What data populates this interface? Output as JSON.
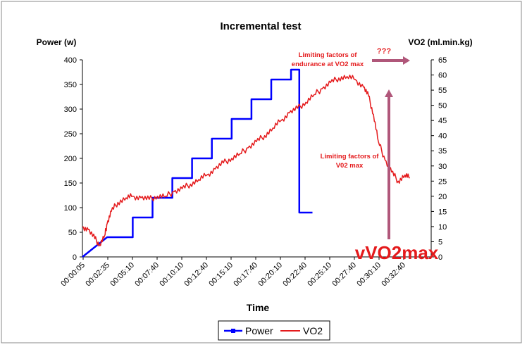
{
  "chart_data": {
    "type": "line",
    "title": "Incremental test",
    "xlabel": "Time",
    "ylabel_left": "Power (w)",
    "ylabel_right": "VO2 (ml.min.kg)",
    "x_ticks": [
      "00:00:05",
      "00:02:35",
      "00:05:10",
      "00:07:40",
      "00:10:10",
      "00:12:40",
      "00:15:10",
      "00:17:40",
      "00:20:10",
      "00:22:40",
      "00:25:10",
      "00:27:40",
      "00:30:10",
      "00:32:40"
    ],
    "y_left_ticks": [
      "0",
      "50",
      "100",
      "150",
      "200",
      "250",
      "300",
      "350",
      "400"
    ],
    "y_right_ticks": [
      "0",
      "5",
      "10",
      "15",
      "20",
      "25",
      "30",
      "35",
      "40",
      "45",
      "50",
      "55",
      "60",
      "65"
    ],
    "ylim_left": [
      0,
      400
    ],
    "ylim_right": [
      0,
      65
    ],
    "xlim_seconds": [
      5,
      2120
    ],
    "series": [
      {
        "name": "Power",
        "axis": "left",
        "color": "#0000ff",
        "step": true,
        "points": [
          [
            "00:00:05",
            0
          ],
          [
            "00:02:35",
            40
          ],
          [
            "00:05:10",
            40
          ],
          [
            "00:05:10",
            80
          ],
          [
            "00:07:10",
            80
          ],
          [
            "00:07:10",
            120
          ],
          [
            "00:09:10",
            120
          ],
          [
            "00:09:10",
            160
          ],
          [
            "00:11:10",
            160
          ],
          [
            "00:11:10",
            200
          ],
          [
            "00:13:10",
            200
          ],
          [
            "00:13:10",
            240
          ],
          [
            "00:15:10",
            240
          ],
          [
            "00:15:10",
            280
          ],
          [
            "00:17:10",
            280
          ],
          [
            "00:17:10",
            320
          ],
          [
            "00:19:10",
            320
          ],
          [
            "00:19:10",
            360
          ],
          [
            "00:21:10",
            360
          ],
          [
            "00:21:10",
            380
          ],
          [
            "00:22:00",
            380
          ],
          [
            "00:22:00",
            90
          ],
          [
            "00:23:20",
            90
          ]
        ]
      },
      {
        "name": "VO2",
        "axis": "right",
        "color": "#e41a1c",
        "points": [
          [
            "00:00:05",
            10
          ],
          [
            "00:00:40",
            9
          ],
          [
            "00:01:20",
            6
          ],
          [
            "00:01:50",
            4
          ],
          [
            "00:02:20",
            7
          ],
          [
            "00:02:35",
            11
          ],
          [
            "00:03:00",
            15
          ],
          [
            "00:03:40",
            18
          ],
          [
            "00:04:30",
            19.5
          ],
          [
            "00:05:10",
            20
          ],
          [
            "00:06:00",
            19.5
          ],
          [
            "00:06:50",
            19
          ],
          [
            "00:07:40",
            20
          ],
          [
            "00:08:30",
            20
          ],
          [
            "00:09:20",
            21.5
          ],
          [
            "00:10:10",
            22.5
          ],
          [
            "00:11:00",
            24
          ],
          [
            "00:11:50",
            25.5
          ],
          [
            "00:12:40",
            27
          ],
          [
            "00:13:30",
            29
          ],
          [
            "00:14:20",
            31
          ],
          [
            "00:15:10",
            32.5
          ],
          [
            "00:16:00",
            34
          ],
          [
            "00:16:50",
            36
          ],
          [
            "00:17:40",
            38
          ],
          [
            "00:18:30",
            40
          ],
          [
            "00:19:20",
            42.5
          ],
          [
            "00:20:10",
            45
          ],
          [
            "00:21:00",
            47.5
          ],
          [
            "00:21:50",
            49
          ],
          [
            "00:22:40",
            51
          ],
          [
            "00:23:30",
            53.5
          ],
          [
            "00:24:20",
            55.5
          ],
          [
            "00:25:10",
            57.5
          ],
          [
            "00:26:00",
            59
          ],
          [
            "00:26:50",
            59.5
          ],
          [
            "00:27:40",
            58.5
          ],
          [
            "00:28:30",
            56
          ],
          [
            "00:29:00",
            53
          ],
          [
            "00:29:30",
            47
          ],
          [
            "00:30:00",
            38
          ],
          [
            "00:30:40",
            32
          ],
          [
            "00:31:20",
            28
          ],
          [
            "00:32:00",
            25
          ],
          [
            "00:32:40",
            27
          ],
          [
            "00:33:10",
            26
          ]
        ]
      }
    ],
    "legend": {
      "placement": "bottom",
      "entries": [
        "Power",
        "VO2"
      ]
    },
    "annotations": {
      "limiting_endurance": [
        "Limiting factors of",
        "endurance at VO2 max"
      ],
      "question": "???",
      "limiting_vo2": [
        "Limiting factors of",
        "V02 max"
      ],
      "vvo2max": "vVO2max"
    },
    "colors": {
      "power": "#0000ff",
      "vo2": "#e41a1c",
      "arrow": "#b0577a"
    }
  }
}
